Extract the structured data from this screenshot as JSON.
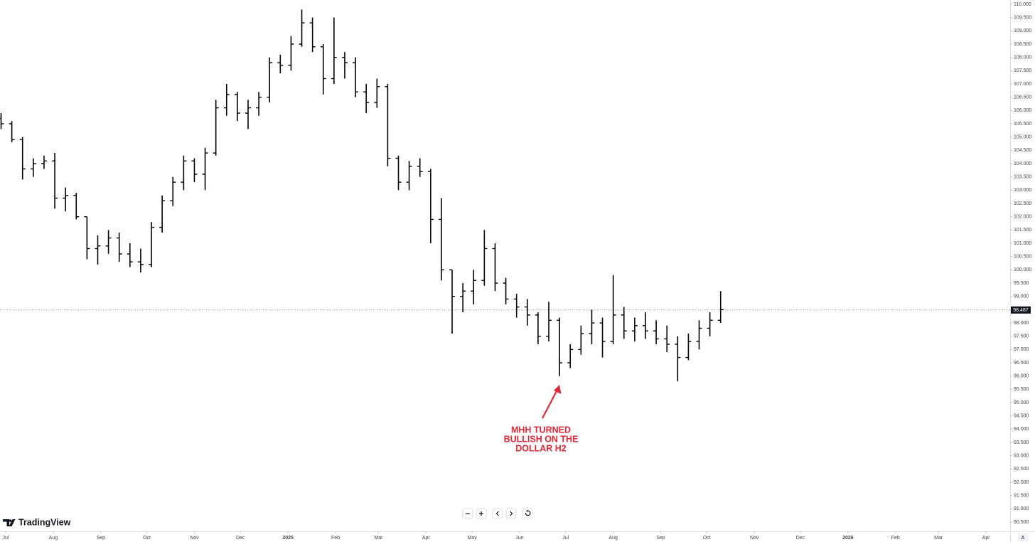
{
  "chart_data": {
    "type": "ohlc",
    "color": "#000000",
    "x": [
      -3,
      4,
      11,
      18,
      25,
      32,
      39,
      46,
      53,
      60,
      67,
      74,
      81,
      88,
      95,
      102,
      109,
      116,
      123,
      130,
      137,
      144,
      151,
      158,
      165,
      172,
      179,
      186,
      193,
      200,
      207,
      214,
      221,
      228,
      235,
      242,
      249,
      256,
      263,
      270,
      277,
      284,
      291,
      298,
      305,
      312,
      319,
      326,
      333,
      340,
      347,
      354,
      361,
      368,
      375,
      382,
      389,
      396,
      403,
      410,
      417,
      424,
      431,
      438,
      445,
      452,
      459,
      466
    ],
    "open": [
      105.7,
      105.5,
      104.9,
      103.8,
      104.0,
      104.1,
      102.7,
      102.8,
      102.0,
      100.8,
      100.9,
      101.2,
      100.6,
      100.3,
      100.2,
      101.6,
      102.6,
      103.3,
      104.1,
      103.6,
      104.4,
      106.1,
      106.6,
      105.9,
      106.1,
      106.5,
      107.8,
      107.7,
      108.5,
      109.3,
      108.4,
      107.2,
      108.0,
      107.8,
      106.7,
      106.3,
      106.9,
      104.2,
      103.3,
      103.9,
      103.7,
      101.9,
      100.0,
      99.0,
      99.2,
      99.6,
      100.8,
      99.5,
      98.9,
      98.6,
      98.3,
      97.5,
      98.1,
      96.5,
      97.0,
      97.6,
      98.0,
      97.3,
      98.3,
      97.7,
      97.9,
      97.7,
      97.4,
      97.2,
      96.7,
      97.3,
      97.8,
      98.1
    ],
    "high": [
      105.9,
      105.6,
      105.0,
      104.2,
      104.3,
      104.4,
      103.1,
      102.9,
      102.0,
      101.3,
      101.5,
      101.4,
      101.0,
      100.8,
      101.8,
      102.8,
      103.5,
      104.3,
      104.2,
      104.6,
      106.4,
      107.0,
      106.7,
      106.4,
      106.7,
      108.0,
      108.1,
      108.8,
      109.8,
      109.5,
      108.5,
      109.5,
      108.2,
      108.0,
      107.0,
      107.2,
      107.0,
      104.3,
      104.1,
      104.2,
      103.8,
      102.7,
      100.0,
      99.5,
      100.0,
      101.5,
      101.0,
      99.7,
      99.1,
      98.9,
      98.4,
      98.8,
      98.2,
      97.2,
      97.9,
      98.5,
      98.2,
      99.8,
      98.6,
      98.2,
      98.4,
      98.1,
      97.9,
      97.5,
      97.6,
      98.1,
      98.4,
      99.2
    ],
    "low": [
      105.3,
      104.8,
      103.4,
      103.5,
      103.8,
      102.3,
      102.2,
      101.9,
      100.4,
      100.2,
      100.6,
      100.3,
      100.1,
      99.9,
      100.1,
      101.4,
      102.4,
      103.0,
      103.3,
      103.0,
      104.3,
      105.8,
      105.6,
      105.3,
      105.8,
      106.3,
      107.4,
      107.5,
      108.4,
      108.2,
      106.6,
      107.0,
      107.2,
      106.5,
      105.9,
      106.1,
      103.9,
      103.0,
      103.0,
      103.5,
      101.0,
      99.6,
      97.6,
      98.4,
      98.7,
      99.4,
      99.2,
      98.7,
      98.2,
      97.9,
      97.2,
      97.3,
      96.0,
      96.3,
      96.8,
      97.2,
      96.7,
      97.2,
      97.4,
      97.3,
      97.4,
      97.2,
      96.9,
      95.8,
      96.6,
      97.0,
      97.5,
      98.0
    ],
    "close": [
      105.5,
      104.9,
      103.8,
      104.0,
      104.1,
      102.7,
      102.8,
      102.0,
      100.8,
      100.9,
      101.2,
      100.6,
      100.3,
      100.2,
      101.6,
      102.6,
      103.3,
      104.1,
      103.6,
      104.4,
      106.1,
      106.6,
      105.9,
      106.1,
      106.5,
      107.8,
      107.7,
      108.5,
      109.3,
      108.4,
      107.2,
      108.0,
      107.8,
      106.7,
      106.3,
      106.9,
      104.2,
      103.3,
      103.9,
      103.7,
      101.9,
      100.0,
      99.0,
      99.2,
      99.6,
      100.8,
      99.5,
      98.9,
      98.6,
      98.3,
      97.5,
      98.1,
      96.5,
      97.0,
      97.6,
      98.0,
      97.3,
      98.3,
      97.7,
      97.9,
      97.7,
      97.4,
      97.2,
      96.7,
      97.3,
      97.8,
      98.1,
      98.5
    ],
    "last_price": {
      "value": 98.487,
      "label": "98.487"
    },
    "xlim": [
      -3.7,
      654.7
    ],
    "xticks": [
      {
        "value": 0,
        "label": "Jul"
      },
      {
        "value": 31,
        "label": "Aug"
      },
      {
        "value": 62,
        "label": "Sep"
      },
      {
        "value": 92,
        "label": "Oct"
      },
      {
        "value": 123,
        "label": "Nov"
      },
      {
        "value": 153,
        "label": "Dec"
      },
      {
        "value": 184,
        "label": "2025"
      },
      {
        "value": 215,
        "label": "Feb"
      },
      {
        "value": 243,
        "label": "Mar"
      },
      {
        "value": 274,
        "label": "Apr"
      },
      {
        "value": 304,
        "label": "May"
      },
      {
        "value": 335,
        "label": "Jun"
      },
      {
        "value": 365,
        "label": "Jul"
      },
      {
        "value": 396,
        "label": "Aug"
      },
      {
        "value": 427,
        "label": "Sep"
      },
      {
        "value": 457,
        "label": "Oct"
      },
      {
        "value": 488,
        "label": "Nov"
      },
      {
        "value": 518,
        "label": "Dec"
      },
      {
        "value": 549,
        "label": "2026"
      },
      {
        "value": 580,
        "label": "Feb"
      },
      {
        "value": 608,
        "label": "Mar"
      },
      {
        "value": 639,
        "label": "Apr"
      }
    ],
    "ylim": [
      90.18,
      110.16
    ],
    "yticks": [
      {
        "value": 110,
        "label": "110.000"
      },
      {
        "value": 109.5,
        "label": "109.500"
      },
      {
        "value": 109,
        "label": "109.000"
      },
      {
        "value": 108.5,
        "label": "108.500"
      },
      {
        "value": 108,
        "label": "108.000"
      },
      {
        "value": 107.5,
        "label": "107.500"
      },
      {
        "value": 107,
        "label": "107.000"
      },
      {
        "value": 106.5,
        "label": "106.500"
      },
      {
        "value": 106,
        "label": "106.000"
      },
      {
        "value": 105.5,
        "label": "105.500"
      },
      {
        "value": 105,
        "label": "105.000"
      },
      {
        "value": 104.5,
        "label": "104.500"
      },
      {
        "value": 104,
        "label": "104.000"
      },
      {
        "value": 103.5,
        "label": "103.500"
      },
      {
        "value": 103,
        "label": "103.000"
      },
      {
        "value": 102.5,
        "label": "102.500"
      },
      {
        "value": 102,
        "label": "102.000"
      },
      {
        "value": 101.5,
        "label": "101.500"
      },
      {
        "value": 101,
        "label": "101.000"
      },
      {
        "value": 100.5,
        "label": "100.500"
      },
      {
        "value": 100,
        "label": "100.000"
      },
      {
        "value": 99.5,
        "label": "99.500"
      },
      {
        "value": 99,
        "label": "99.000"
      },
      {
        "value": 98.5,
        "label": "98.500"
      },
      {
        "value": 98,
        "label": "98.000"
      },
      {
        "value": 97.5,
        "label": "97.500"
      },
      {
        "value": 97,
        "label": "97.000"
      },
      {
        "value": 96.5,
        "label": "96.500"
      },
      {
        "value": 96,
        "label": "96.000"
      },
      {
        "value": 95.5,
        "label": "95.500"
      },
      {
        "value": 95,
        "label": "95.000"
      },
      {
        "value": 94.5,
        "label": "94.500"
      },
      {
        "value": 94,
        "label": "94.000"
      },
      {
        "value": 93.5,
        "label": "93.500"
      },
      {
        "value": 93,
        "label": "93.000"
      },
      {
        "value": 92.5,
        "label": "92.500"
      },
      {
        "value": 92,
        "label": "92.000"
      },
      {
        "value": 91.5,
        "label": "91.500"
      },
      {
        "value": 91,
        "label": "91.000"
      },
      {
        "value": 90.5,
        "label": "90.500"
      }
    ],
    "annotation": [
      "MHH TURNED",
      "BULLISH ON THE",
      "DOLLAR H2"
    ],
    "annotation_color": "#e0283a"
  },
  "ui": {
    "logo_text": "TradingView",
    "auto_scale_label": "A"
  }
}
